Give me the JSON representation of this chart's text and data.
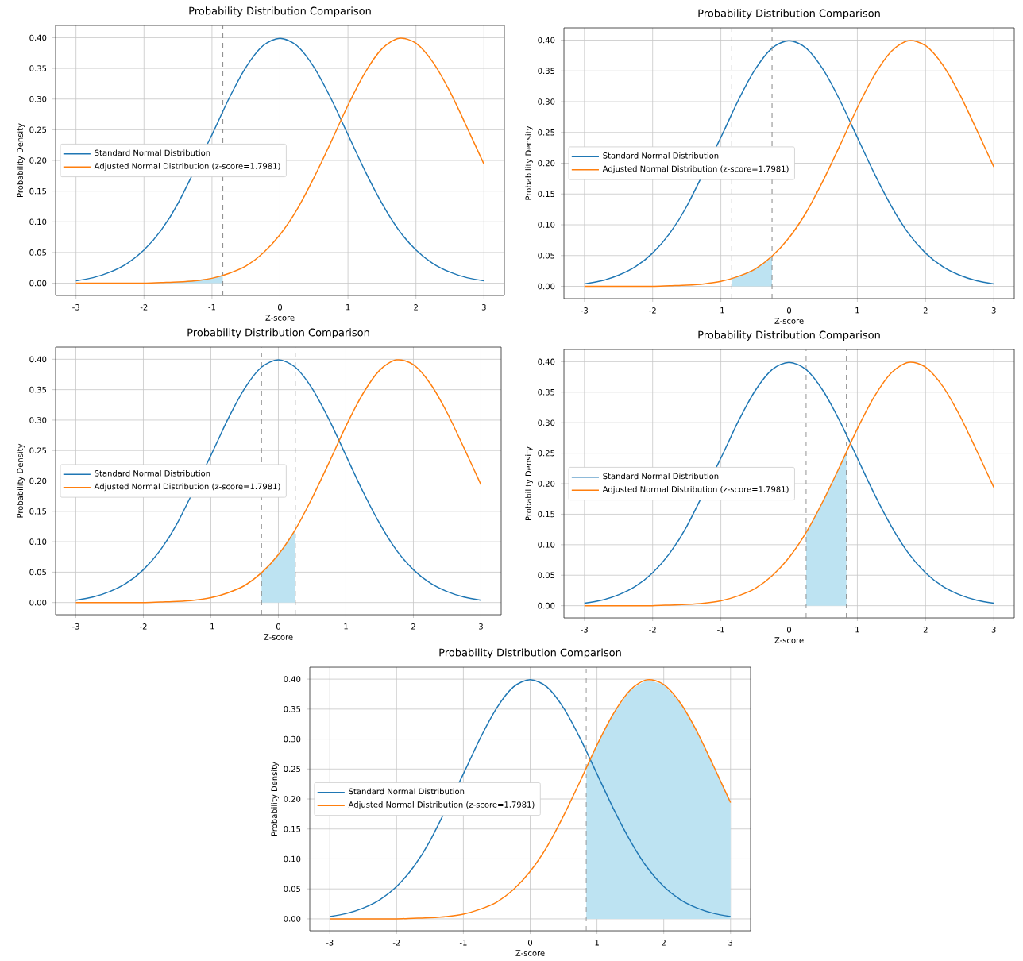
{
  "chart_data": [
    {
      "type": "line",
      "title": "Probability Distribution Comparison",
      "xlabel": "Z-score",
      "ylabel": "Probability Density",
      "xlim": [
        -3.3,
        3.3
      ],
      "ylim": [
        -0.02,
        0.42
      ],
      "xticks": [
        -3,
        -2,
        -1,
        0,
        1,
        2,
        3
      ],
      "yticks": [
        {
          "value": 0,
          "label": "0.00"
        },
        {
          "value": 0.05,
          "label": "0.05"
        },
        {
          "value": 0.1,
          "label": "0.10"
        },
        {
          "value": 0.15,
          "label": "0.15"
        },
        {
          "value": 0.2,
          "label": "0.20"
        },
        {
          "value": 0.25,
          "label": "0.25"
        },
        {
          "value": 0.3,
          "label": "0.30"
        },
        {
          "value": 0.35,
          "label": "0.35"
        },
        {
          "value": 0.4,
          "label": "0.40"
        }
      ],
      "grid": true,
      "legend": "left",
      "series": [
        {
          "type": "area",
          "color": "#bde3f2",
          "x": [
            -3,
            -2.5,
            -2,
            -1.5,
            -1,
            -0.84
          ],
          "values": [
            0,
            0,
            0,
            0.002,
            0.008,
            0.012
          ]
        },
        {
          "name": "Standard Normal Distribution",
          "color": "#1f77b4",
          "x": [
            -3,
            -2.75,
            -2.5,
            -2.25,
            -2,
            -1.75,
            -1.5,
            -1.25,
            -1,
            -0.75,
            -0.5,
            -0.25,
            0,
            0.25,
            0.5,
            0.75,
            1,
            1.25,
            1.5,
            1.75,
            2,
            2.25,
            2.5,
            2.75,
            3
          ],
          "values": [
            0.004,
            0.009,
            0.018,
            0.032,
            0.054,
            0.086,
            0.13,
            null,
            0.242,
            0.301,
            0.352,
            0.387,
            0.399,
            0.387,
            0.352,
            0.301,
            0.242,
            0.183,
            0.13,
            0.086,
            0.054,
            0.032,
            0.018,
            0.009,
            0.004
          ]
        },
        {
          "name": "Adjusted Normal Distribution (z-score=1.7981)",
          "color": "#ff7f0e",
          "x": [
            -3,
            -2.75,
            -2.5,
            -2.25,
            -2,
            -1.75,
            -1.5,
            -1.25,
            -1,
            -0.75,
            -0.5,
            -0.25,
            0,
            0.25,
            0.5,
            0.75,
            1,
            1.25,
            1.5,
            1.75,
            2,
            2.25,
            2.5,
            2.75,
            3
          ],
          "values": [
            0,
            0,
            0,
            0,
            0,
            0.001,
            0.002,
            0.004,
            0.008,
            0.016,
            0.028,
            0.049,
            0.079,
            0.12,
            0.172,
            0.23,
            0.29,
            0.343,
            0.382,
            0.399,
            0.391,
            0.36,
            0.312,
            0.254,
            0.194
          ]
        }
      ],
      "ref_lines": [
        {
          "axis": "x",
          "value": -0.84,
          "color": "#888888",
          "line_style": "dashed"
        }
      ]
    },
    {
      "type": "line",
      "title": "Probability Distribution Comparison",
      "xlabel": "Z-score",
      "ylabel": "Probability Density",
      "xlim": [
        -3.3,
        3.3
      ],
      "ylim": [
        -0.02,
        0.42
      ],
      "xticks": [
        -3,
        -2,
        -1,
        0,
        1,
        2,
        3
      ],
      "yticks": [
        {
          "value": 0,
          "label": "0.00"
        },
        {
          "value": 0.05,
          "label": "0.05"
        },
        {
          "value": 0.1,
          "label": "0.10"
        },
        {
          "value": 0.15,
          "label": "0.15"
        },
        {
          "value": 0.2,
          "label": "0.20"
        },
        {
          "value": 0.25,
          "label": "0.25"
        },
        {
          "value": 0.3,
          "label": "0.30"
        },
        {
          "value": 0.35,
          "label": "0.35"
        },
        {
          "value": 0.4,
          "label": "0.40"
        }
      ],
      "grid": true,
      "legend": "left",
      "series": [
        {
          "type": "area",
          "color": "#bde3f2",
          "x": [
            -0.84,
            -0.75,
            -0.5,
            -0.25
          ],
          "values": [
            0.012,
            0.016,
            0.028,
            0.049
          ]
        },
        {
          "name": "Standard Normal Distribution",
          "color": "#1f77b4",
          "x": [
            -3,
            -2.75,
            -2.5,
            -2.25,
            -2,
            -1.75,
            -1.5,
            -1.25,
            -1,
            -0.75,
            -0.5,
            -0.25,
            0,
            0.25,
            0.5,
            0.75,
            1,
            1.25,
            1.5,
            1.75,
            2,
            2.25,
            2.5,
            2.75,
            3
          ],
          "values": [
            0.004,
            0.009,
            0.018,
            0.032,
            0.054,
            0.086,
            0.13,
            null,
            0.242,
            0.301,
            0.352,
            0.387,
            0.399,
            0.387,
            0.352,
            0.301,
            0.242,
            0.183,
            0.13,
            0.086,
            0.054,
            0.032,
            0.018,
            0.009,
            0.004
          ]
        },
        {
          "name": "Adjusted Normal Distribution (z-score=1.7981)",
          "color": "#ff7f0e",
          "x": [
            -3,
            -2.75,
            -2.5,
            -2.25,
            -2,
            -1.75,
            -1.5,
            -1.25,
            -1,
            -0.75,
            -0.5,
            -0.25,
            0,
            0.25,
            0.5,
            0.75,
            1,
            1.25,
            1.5,
            1.75,
            2,
            2.25,
            2.5,
            2.75,
            3
          ],
          "values": [
            0,
            0,
            0,
            0,
            0,
            0.001,
            0.002,
            0.004,
            0.008,
            0.016,
            0.028,
            0.049,
            0.079,
            0.12,
            0.172,
            0.23,
            0.29,
            0.343,
            0.382,
            0.399,
            0.391,
            0.36,
            0.312,
            0.254,
            0.194
          ]
        }
      ],
      "ref_lines": [
        {
          "axis": "x",
          "value": -0.84,
          "color": "#888888",
          "line_style": "dashed"
        },
        {
          "axis": "x",
          "value": -0.25,
          "color": "#888888",
          "line_style": "dashed"
        }
      ]
    },
    {
      "type": "line",
      "title": "Probability Distribution Comparison",
      "xlabel": "Z-score",
      "ylabel": "Probability Density",
      "xlim": [
        -3.3,
        3.3
      ],
      "ylim": [
        -0.02,
        0.42
      ],
      "xticks": [
        -3,
        -2,
        -1,
        0,
        1,
        2,
        3
      ],
      "yticks": [
        {
          "value": 0,
          "label": "0.00"
        },
        {
          "value": 0.05,
          "label": "0.05"
        },
        {
          "value": 0.1,
          "label": "0.10"
        },
        {
          "value": 0.15,
          "label": "0.15"
        },
        {
          "value": 0.2,
          "label": "0.20"
        },
        {
          "value": 0.25,
          "label": "0.25"
        },
        {
          "value": 0.3,
          "label": "0.30"
        },
        {
          "value": 0.35,
          "label": "0.35"
        },
        {
          "value": 0.4,
          "label": "0.40"
        }
      ],
      "grid": true,
      "legend": "left",
      "series": [
        {
          "type": "area",
          "color": "#bde3f2",
          "x": [
            -0.25,
            0,
            0.25
          ],
          "values": [
            0.049,
            0.079,
            0.12
          ]
        },
        {
          "name": "Standard Normal Distribution",
          "color": "#1f77b4",
          "x": [
            -3,
            -2.75,
            -2.5,
            -2.25,
            -2,
            -1.75,
            -1.5,
            -1.25,
            -1,
            -0.75,
            -0.5,
            -0.25,
            0,
            0.25,
            0.5,
            0.75,
            1,
            1.25,
            1.5,
            1.75,
            2,
            2.25,
            2.5,
            2.75,
            3
          ],
          "values": [
            0.004,
            0.009,
            0.018,
            0.032,
            0.054,
            0.086,
            0.13,
            null,
            0.242,
            0.301,
            0.352,
            0.387,
            0.399,
            0.387,
            0.352,
            0.301,
            0.242,
            0.183,
            0.13,
            0.086,
            0.054,
            0.032,
            0.018,
            0.009,
            0.004
          ]
        },
        {
          "name": "Adjusted Normal Distribution (z-score=1.7981)",
          "color": "#ff7f0e",
          "x": [
            -3,
            -2.75,
            -2.5,
            -2.25,
            -2,
            -1.75,
            -1.5,
            -1.25,
            -1,
            -0.75,
            -0.5,
            -0.25,
            0,
            0.25,
            0.5,
            0.75,
            1,
            1.25,
            1.5,
            1.75,
            2,
            2.25,
            2.5,
            2.75,
            3
          ],
          "values": [
            0,
            0,
            0,
            0,
            0,
            0.001,
            0.002,
            0.004,
            0.008,
            0.016,
            0.028,
            0.049,
            0.079,
            0.12,
            0.172,
            0.23,
            0.29,
            0.343,
            0.382,
            0.399,
            0.391,
            0.36,
            0.312,
            0.254,
            0.194
          ]
        }
      ],
      "ref_lines": [
        {
          "axis": "x",
          "value": -0.25,
          "color": "#888888",
          "line_style": "dashed"
        },
        {
          "axis": "x",
          "value": 0.25,
          "color": "#888888",
          "line_style": "dashed"
        }
      ]
    },
    {
      "type": "line",
      "title": "Probability Distribution Comparison",
      "xlabel": "Z-score",
      "ylabel": "Probability Density",
      "xlim": [
        -3.3,
        3.3
      ],
      "ylim": [
        -0.02,
        0.42
      ],
      "xticks": [
        -3,
        -2,
        -1,
        0,
        1,
        2,
        3
      ],
      "yticks": [
        {
          "value": 0,
          "label": "0.00"
        },
        {
          "value": 0.05,
          "label": "0.05"
        },
        {
          "value": 0.1,
          "label": "0.10"
        },
        {
          "value": 0.15,
          "label": "0.15"
        },
        {
          "value": 0.2,
          "label": "0.20"
        },
        {
          "value": 0.25,
          "label": "0.25"
        },
        {
          "value": 0.3,
          "label": "0.30"
        },
        {
          "value": 0.35,
          "label": "0.35"
        },
        {
          "value": 0.4,
          "label": "0.40"
        }
      ],
      "grid": true,
      "legend": "left",
      "series": [
        {
          "type": "area",
          "color": "#bde3f2",
          "x": [
            0.25,
            0.5,
            0.75,
            0.84
          ],
          "values": [
            0.12,
            0.172,
            0.23,
            0.252
          ]
        },
        {
          "name": "Standard Normal Distribution",
          "color": "#1f77b4",
          "x": [
            -3,
            -2.75,
            -2.5,
            -2.25,
            -2,
            -1.75,
            -1.5,
            -1.25,
            -1,
            -0.75,
            -0.5,
            -0.25,
            0,
            0.25,
            0.5,
            0.75,
            1,
            1.25,
            1.5,
            1.75,
            2,
            2.25,
            2.5,
            2.75,
            3
          ],
          "values": [
            0.004,
            0.009,
            0.018,
            0.032,
            0.054,
            0.086,
            0.13,
            null,
            0.242,
            0.301,
            0.352,
            0.387,
            0.399,
            0.387,
            0.352,
            0.301,
            0.242,
            0.183,
            0.13,
            0.086,
            0.054,
            0.032,
            0.018,
            0.009,
            0.004
          ]
        },
        {
          "name": "Adjusted Normal Distribution (z-score=1.7981)",
          "color": "#ff7f0e",
          "x": [
            -3,
            -2.75,
            -2.5,
            -2.25,
            -2,
            -1.75,
            -1.5,
            -1.25,
            -1,
            -0.75,
            -0.5,
            -0.25,
            0,
            0.25,
            0.5,
            0.75,
            1,
            1.25,
            1.5,
            1.75,
            2,
            2.25,
            2.5,
            2.75,
            3
          ],
          "values": [
            0,
            0,
            0,
            0,
            0,
            0.001,
            0.002,
            0.004,
            0.008,
            0.016,
            0.028,
            0.049,
            0.079,
            0.12,
            0.172,
            0.23,
            0.29,
            0.343,
            0.382,
            0.399,
            0.391,
            0.36,
            0.312,
            0.254,
            0.194
          ]
        }
      ],
      "ref_lines": [
        {
          "axis": "x",
          "value": 0.25,
          "color": "#888888",
          "line_style": "dashed"
        },
        {
          "axis": "x",
          "value": 0.84,
          "color": "#888888",
          "line_style": "dashed"
        }
      ]
    },
    {
      "type": "line",
      "title": "Probability Distribution Comparison",
      "xlabel": "Z-score",
      "ylabel": "Probability Density",
      "xlim": [
        -3.3,
        3.3
      ],
      "ylim": [
        -0.02,
        0.42
      ],
      "xticks": [
        -3,
        -2,
        -1,
        0,
        1,
        2,
        3
      ],
      "yticks": [
        {
          "value": 0,
          "label": "0.00"
        },
        {
          "value": 0.05,
          "label": "0.05"
        },
        {
          "value": 0.1,
          "label": "0.10"
        },
        {
          "value": 0.15,
          "label": "0.15"
        },
        {
          "value": 0.2,
          "label": "0.20"
        },
        {
          "value": 0.25,
          "label": "0.25"
        },
        {
          "value": 0.3,
          "label": "0.30"
        },
        {
          "value": 0.35,
          "label": "0.35"
        },
        {
          "value": 0.4,
          "label": "0.40"
        }
      ],
      "grid": true,
      "legend": "left",
      "series": [
        {
          "type": "area",
          "color": "#bde3f2",
          "x": [
            0.84,
            1,
            1.25,
            1.5,
            1.75,
            2,
            2.25,
            2.5,
            2.75,
            3
          ],
          "values": [
            0.252,
            0.29,
            0.343,
            0.382,
            0.399,
            0.391,
            0.36,
            0.312,
            0.254,
            0.194
          ]
        },
        {
          "name": "Standard Normal Distribution",
          "color": "#1f77b4",
          "x": [
            -3,
            -2.75,
            -2.5,
            -2.25,
            -2,
            -1.75,
            -1.5,
            -1.25,
            -1,
            -0.75,
            -0.5,
            -0.25,
            0,
            0.25,
            0.5,
            0.75,
            1,
            1.25,
            1.5,
            1.75,
            2,
            2.25,
            2.5,
            2.75,
            3
          ],
          "values": [
            0.004,
            0.009,
            0.018,
            0.032,
            0.054,
            0.086,
            0.13,
            null,
            0.242,
            0.301,
            0.352,
            0.387,
            0.399,
            0.387,
            0.352,
            0.301,
            0.242,
            0.183,
            0.13,
            0.086,
            0.054,
            0.032,
            0.018,
            0.009,
            0.004
          ]
        },
        {
          "name": "Adjusted Normal Distribution (z-score=1.7981)",
          "color": "#ff7f0e",
          "x": [
            -3,
            -2.75,
            -2.5,
            -2.25,
            -2,
            -1.75,
            -1.5,
            -1.25,
            -1,
            -0.75,
            -0.5,
            -0.25,
            0,
            0.25,
            0.5,
            0.75,
            1,
            1.25,
            1.5,
            1.75,
            2,
            2.25,
            2.5,
            2.75,
            3
          ],
          "values": [
            0,
            0,
            0,
            0,
            0,
            0.001,
            0.002,
            0.004,
            0.008,
            0.016,
            0.028,
            0.049,
            0.079,
            0.12,
            0.172,
            0.23,
            0.29,
            0.343,
            0.382,
            0.399,
            0.391,
            0.36,
            0.312,
            0.254,
            0.194
          ]
        }
      ],
      "ref_lines": [
        {
          "axis": "x",
          "value": 0.84,
          "color": "#888888",
          "line_style": "dashed"
        }
      ]
    }
  ]
}
